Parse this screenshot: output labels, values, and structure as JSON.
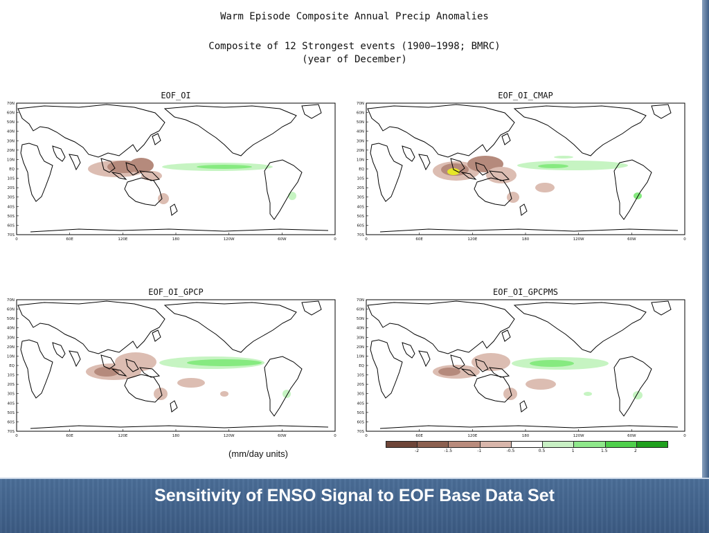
{
  "slide": {
    "title": "Sensitivity of ENSO Signal to EOF Base Data Set",
    "units_note": "(mm/day units)"
  },
  "figure": {
    "title": "Warm Episode Composite Annual Precip Anomalies",
    "subtitle": "Composite of 12 Strongest events (1900−1998; BMRC)",
    "subtitle2": "(year of December)"
  },
  "lat_labels": [
    "70N",
    "60N",
    "50N",
    "40N",
    "30N",
    "20N",
    "10N",
    "EQ",
    "10S",
    "20S",
    "30S",
    "40S",
    "50S",
    "60S",
    "70S"
  ],
  "lon_labels": [
    "0",
    "60E",
    "120E",
    "180",
    "120W",
    "60W",
    "0"
  ],
  "panels": [
    {
      "title": "EOF_OI"
    },
    {
      "title": "EOF_OI_CMAP"
    },
    {
      "title": "EOF_OI_GPCP"
    },
    {
      "title": "EOF_OI_GPCPMS"
    }
  ],
  "legend": {
    "colors": [
      "#6e4538",
      "#8c6050",
      "#b98b7c",
      "#d9b6ab",
      "#ffffff",
      "#c8f0c4",
      "#8ee88a",
      "#4fcf4c",
      "#20a01e"
    ],
    "ticks": [
      "-2",
      "-1.5",
      "-1",
      "-0.5",
      "0.5",
      "1",
      "1.5",
      "2"
    ]
  },
  "colors": {
    "dry_dark": "#b58a7c",
    "dry_light": "#dcbdb2",
    "wet_light": "#c6f4c2",
    "wet_mid": "#86ea80",
    "yellow": "#e6e628",
    "band": "#3f6189"
  }
}
